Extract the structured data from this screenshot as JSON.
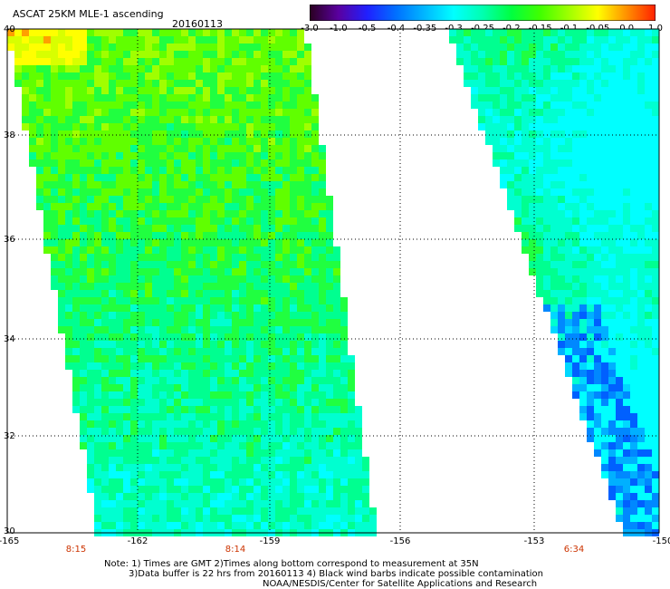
{
  "header": {
    "title": "ASCAT 25KM MLE-1 ascending",
    "date": "20160113"
  },
  "colorbar": {
    "labels": [
      "-3.0",
      "-1.0",
      "-0.5",
      "-0.4",
      "-0.35",
      "-0.3",
      "-0.25",
      "-0.2",
      "-0.15",
      "-0.1",
      "-0.05",
      "0.0",
      "1.0"
    ],
    "colors": [
      "#2a0020",
      "#5a00a0",
      "#2020ff",
      "#0070ff",
      "#00b8ff",
      "#00ffff",
      "#00ffb0",
      "#00ff40",
      "#40ff00",
      "#a0ff00",
      "#ffff00",
      "#ff9000",
      "#ff2000"
    ]
  },
  "map": {
    "lat_labels": [
      "40",
      "38",
      "36",
      "34",
      "32",
      "30"
    ],
    "lon_labels": [
      "-165",
      "-162",
      "-159",
      "-156",
      "-153",
      "-150"
    ],
    "time_labels": [
      "8:15",
      "8:14",
      "6:34"
    ],
    "time_color": "#cc3300",
    "lat_range": [
      30,
      40
    ],
    "lon_range": [
      -165,
      -150
    ]
  },
  "footer": {
    "line1": "Note: 1) Times are GMT 2)Times along bottom correspond to measurement at 35N",
    "line2": "3)Data buffer is 22 hrs from 20160113 4) Black wind barbs indicate possible contamination",
    "line3": "NOAA/NESDIS/Center for Satellite Applications and Research"
  }
}
